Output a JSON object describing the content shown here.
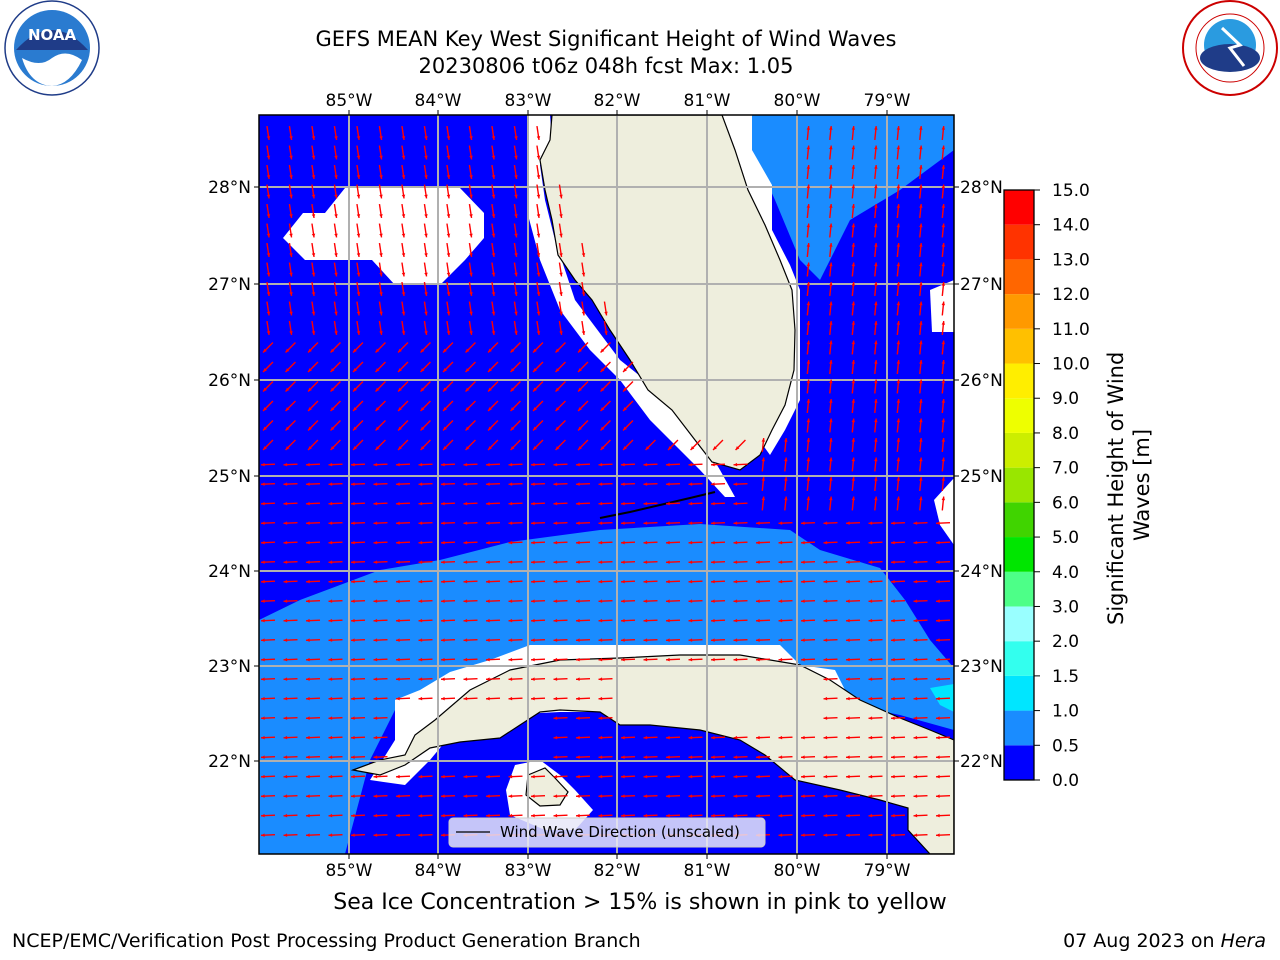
{
  "header": {
    "title_line1": "GEFS MEAN Key West Significant Height of Wind Waves",
    "title_line2": "20230806 t06z 048h fcst   Max: 1.05"
  },
  "logos": {
    "left": {
      "icon": "noaa-logo",
      "text": "NOAA"
    },
    "right": {
      "icon": "national-weather-service-logo"
    }
  },
  "map": {
    "lon_ticks": [
      "85°W",
      "84°W",
      "83°W",
      "82°W",
      "81°W",
      "80°W",
      "79°W"
    ],
    "lat_ticks": [
      "28°N",
      "27°N",
      "26°N",
      "25°N",
      "24°N",
      "23°N",
      "22°N"
    ],
    "legend_label": "Wind Wave Direction (unscaled)",
    "colors": {
      "band_0_0.5": "#0000ff",
      "band_0.5_1": "#1a8cff",
      "band_1_1.5": "#00e6ff",
      "land": "#eeeedd",
      "arrow": "#ff0000",
      "grid": "#b0b0b0"
    }
  },
  "colorbar": {
    "label_line1": "Significant Height of Wind",
    "label_line2": "Waves [m]",
    "ticks": [
      "0.0",
      "0.5",
      "1.0",
      "1.5",
      "2.0",
      "3.0",
      "4.0",
      "5.0",
      "6.0",
      "7.0",
      "8.0",
      "9.0",
      "10.0",
      "11.0",
      "12.0",
      "13.0",
      "14.0",
      "15.0"
    ],
    "colors": [
      "#0000ff",
      "#1a8cff",
      "#00e6ff",
      "#33ffee",
      "#99ffff",
      "#4dff88",
      "#00e600",
      "#40d400",
      "#99e600",
      "#ccee00",
      "#eeff00",
      "#ffee00",
      "#ffc000",
      "#ff9900",
      "#ff6600",
      "#ff3300",
      "#ff0000"
    ]
  },
  "footer": {
    "sea_ice_note": "Sea Ice Concentration > 15% is shown in pink to yellow",
    "credit": "NCEP/EMC/Verification Post Processing Product Generation Branch",
    "date": "07 Aug 2023 on",
    "machine": "Hera"
  }
}
